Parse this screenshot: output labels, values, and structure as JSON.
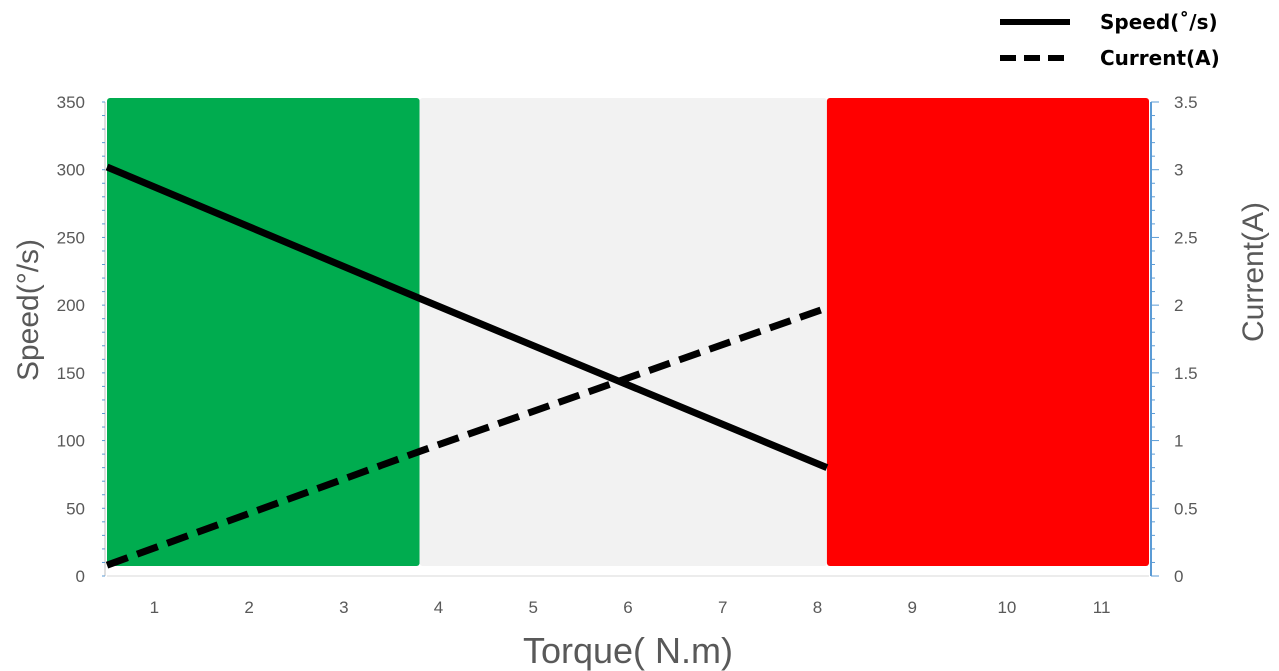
{
  "chart_data": {
    "type": "line",
    "x_categories": [
      "1",
      "2",
      "3",
      "4",
      "5",
      "6",
      "7",
      "8",
      "9",
      "10",
      "11"
    ],
    "xlabel": "Torque( N.m)",
    "ylabel_left": "Speed(°/s)",
    "ylabel_right": "Current(A)",
    "ylim_left": [
      0,
      350
    ],
    "yticks_left": [
      "0",
      "50",
      "100",
      "150",
      "200",
      "250",
      "300",
      "350"
    ],
    "ylim_right": [
      0,
      3.5
    ],
    "yticks_right": [
      "0",
      "0.5",
      "1",
      "1.5",
      "2",
      "2.5",
      "3",
      "3.5"
    ],
    "regions": [
      {
        "from": 0.5,
        "to": 3.8,
        "color": "#00ac4f"
      },
      {
        "from": 3.8,
        "to": 8.1,
        "color": "#f2f2f2"
      },
      {
        "from": 8.1,
        "to": 11.5,
        "color": "#ff0000"
      }
    ],
    "series": [
      {
        "name": "Speed(°/s)",
        "axis": "left",
        "style": "solid",
        "color": "#000000",
        "x": [
          0.5,
          3.8,
          8.1
        ],
        "y": [
          302,
          205,
          80
        ]
      },
      {
        "name": "Current(A)",
        "axis": "right",
        "style": "dashed",
        "color": "#000000",
        "x": [
          0.5,
          3.8,
          8.1
        ],
        "y": [
          0.08,
          0.92,
          1.98
        ]
      }
    ],
    "legend": {
      "position": "top-right",
      "entries": [
        "Speed(˚/s)",
        "Current(A)"
      ]
    },
    "grid": false
  }
}
